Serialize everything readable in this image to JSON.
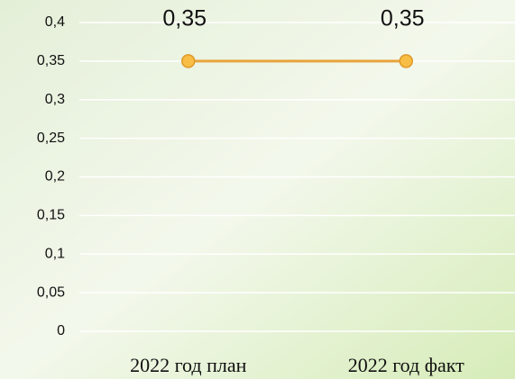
{
  "chart_data": {
    "type": "line",
    "categories": [
      "2022 год план",
      "2022 год факт"
    ],
    "series": [
      {
        "name": null,
        "color": "#e8a43c",
        "values": [
          0.35,
          0.35
        ],
        "value_labels": [
          "0,35",
          "0,35"
        ]
      }
    ],
    "ylim": [
      0,
      0.4
    ],
    "yticks": [
      0,
      {
        "value": 0.05,
        "label": "0,05"
      },
      {
        "value": 0.1,
        "label": "0,1"
      },
      {
        "value": 0.15,
        "label": "0,15"
      },
      {
        "value": 0.2,
        "label": "0,2"
      },
      {
        "value": 0.25,
        "label": "0,25"
      },
      {
        "value": 0.3,
        "label": "0,3"
      },
      {
        "value": 0.35,
        "label": "0,35"
      },
      {
        "value": 0.4,
        "label": "0,4"
      }
    ],
    "grid": true
  }
}
